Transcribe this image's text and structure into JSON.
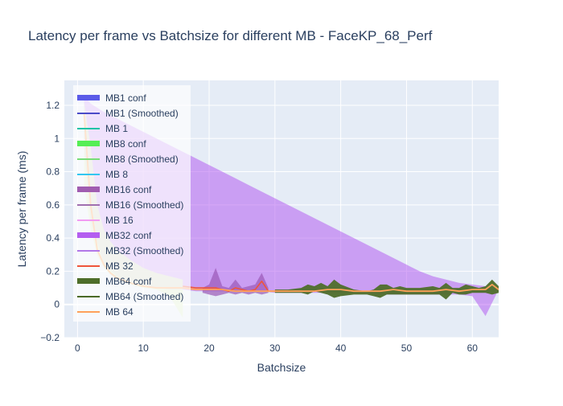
{
  "chart_data": {
    "type": "line",
    "title": "Latency per frame vs Batchsize for different MB - FaceKP_68_Perf",
    "xlabel": "Batchsize",
    "ylabel": "Latency per frame (ms)",
    "xlim": [
      -2,
      64
    ],
    "ylim": [
      -0.2,
      1.35
    ],
    "xticks": [
      0,
      10,
      20,
      30,
      40,
      50,
      60
    ],
    "yticks": [
      -0.2,
      0,
      0.2,
      0.4,
      0.6,
      0.8,
      1,
      1.2
    ],
    "ytick_labels": [
      "−0.2",
      "0",
      "0.2",
      "0.4",
      "0.6",
      "0.8",
      "1",
      "1.2"
    ],
    "grid": true,
    "legend_position": "top-left",
    "colors": {
      "plot_bg": "#e5ecf6",
      "grid": "#ffffff",
      "text": "#2a3f5f"
    },
    "legend": [
      {
        "label": "MB1 conf",
        "kind": "band",
        "color": "#5b5be8"
      },
      {
        "label": "MB1 (Smoothed)",
        "kind": "line",
        "color": "#4b4bc8"
      },
      {
        "label": "MB 1",
        "kind": "line",
        "color": "#19c3a6"
      },
      {
        "label": "MB8 conf",
        "kind": "band",
        "color": "#55ee55"
      },
      {
        "label": "MB8 (Smoothed)",
        "kind": "line",
        "color": "#77dd77"
      },
      {
        "label": "MB 8",
        "kind": "line",
        "color": "#33c6f0"
      },
      {
        "label": "MB16 conf",
        "kind": "band",
        "color": "#a05db0"
      },
      {
        "label": "MB16 (Smoothed)",
        "kind": "line",
        "color": "#a070b0"
      },
      {
        "label": "MB 16",
        "kind": "line",
        "color": "#f29cf2"
      },
      {
        "label": "MB32 conf",
        "kind": "band",
        "color": "#b45ef0"
      },
      {
        "label": "MB32 (Smoothed)",
        "kind": "line",
        "color": "#b278e8"
      },
      {
        "label": "MB 32",
        "kind": "line",
        "color": "#ef553b"
      },
      {
        "label": "MB64 conf",
        "kind": "band",
        "color": "#4e6e2a"
      },
      {
        "label": "MB64 (Smoothed)",
        "kind": "line",
        "color": "#4a6a26"
      },
      {
        "label": "MB 64",
        "kind": "line",
        "color": "#ffa15a"
      }
    ],
    "series": [
      {
        "name": "MB32 conf",
        "kind": "band",
        "color": "#b45ef0",
        "opacity": 0.55,
        "x": [
          1,
          2,
          4,
          6,
          8,
          10,
          12,
          14,
          16,
          18,
          20,
          22,
          24,
          26,
          28,
          30,
          32,
          34,
          36,
          38,
          40,
          42,
          44,
          46,
          48,
          50,
          52,
          54,
          56,
          58,
          60,
          62,
          64
        ],
        "upper": [
          1.26,
          1.21,
          1.16,
          1.12,
          1.08,
          1.04,
          1.0,
          0.96,
          0.92,
          0.88,
          0.84,
          0.8,
          0.76,
          0.72,
          0.68,
          0.64,
          0.6,
          0.56,
          0.52,
          0.48,
          0.44,
          0.4,
          0.36,
          0.32,
          0.28,
          0.24,
          0.2,
          0.17,
          0.15,
          0.13,
          0.12,
          0.11,
          0.09
        ],
        "lower": [
          0.95,
          0.5,
          0.25,
          0.17,
          0.13,
          0.11,
          0.1,
          0.09,
          0.09,
          0.08,
          0.08,
          0.08,
          0.08,
          0.08,
          0.08,
          0.07,
          0.07,
          0.07,
          0.07,
          0.07,
          0.07,
          0.07,
          0.07,
          0.06,
          0.06,
          0.06,
          0.06,
          0.06,
          0.06,
          0.06,
          0.05,
          -0.07,
          0.09
        ]
      },
      {
        "name": "MB8 conf",
        "kind": "band",
        "color": "#d6e8b8",
        "opacity": 0.75,
        "x": [
          1,
          2,
          3,
          4,
          5,
          6,
          8,
          10,
          12,
          14,
          16
        ],
        "upper": [
          1.22,
          0.95,
          0.6,
          0.45,
          0.38,
          0.33,
          0.27,
          0.22,
          0.19,
          0.17,
          0.15
        ],
        "lower": [
          0.72,
          0.45,
          0.3,
          0.22,
          0.18,
          0.15,
          0.12,
          0.1,
          0.09,
          0.05,
          -0.08
        ]
      },
      {
        "name": "MB16 conf",
        "kind": "band",
        "color": "#9b59b6",
        "opacity": 0.7,
        "x": [
          19,
          20,
          21,
          22,
          23,
          24,
          25,
          26,
          27,
          28,
          29
        ],
        "upper": [
          0.1,
          0.12,
          0.22,
          0.11,
          0.1,
          0.15,
          0.1,
          0.11,
          0.12,
          0.19,
          0.1
        ],
        "lower": [
          0.07,
          0.06,
          0.05,
          0.06,
          0.07,
          0.06,
          0.07,
          0.06,
          0.07,
          0.06,
          0.07
        ]
      },
      {
        "name": "MB64 conf",
        "kind": "band",
        "color": "#4e6e2a",
        "opacity": 0.95,
        "x": [
          30,
          32,
          34,
          35,
          36,
          37,
          38,
          39,
          40,
          42,
          44,
          45,
          46,
          47,
          48,
          49,
          50,
          52,
          54,
          55,
          56,
          57,
          58,
          59,
          60,
          61,
          62,
          63,
          64
        ],
        "upper": [
          0.09,
          0.09,
          0.1,
          0.12,
          0.11,
          0.13,
          0.11,
          0.15,
          0.12,
          0.09,
          0.08,
          0.09,
          0.12,
          0.12,
          0.1,
          0.11,
          0.1,
          0.1,
          0.11,
          0.1,
          0.13,
          0.1,
          0.1,
          0.12,
          0.11,
          0.1,
          0.11,
          0.15,
          0.11
        ],
        "lower": [
          0.07,
          0.07,
          0.07,
          0.06,
          0.08,
          0.07,
          0.06,
          0.04,
          0.05,
          0.06,
          0.06,
          0.05,
          0.04,
          0.06,
          0.06,
          0.06,
          0.06,
          0.06,
          0.06,
          0.06,
          0.03,
          0.07,
          0.06,
          0.06,
          0.07,
          0.07,
          0.07,
          0.06,
          0.07
        ]
      },
      {
        "name": "MB 32",
        "kind": "line",
        "color": "#ef553b",
        "width": 1.6,
        "x": [
          16,
          18,
          20,
          21,
          22,
          23,
          24,
          25,
          26,
          27,
          28,
          29,
          30,
          32
        ],
        "y": [
          0.11,
          0.1,
          0.1,
          0.1,
          0.09,
          0.08,
          0.1,
          0.09,
          0.08,
          0.09,
          0.14,
          0.08,
          0.08,
          0.08
        ]
      },
      {
        "name": "MB 64",
        "kind": "line",
        "color": "#ffa15a",
        "width": 1.8,
        "x": [
          1,
          2,
          3,
          4,
          5,
          6,
          8,
          10,
          12,
          14,
          16,
          18,
          20,
          22,
          24,
          26,
          28,
          30,
          32,
          34,
          36,
          38,
          40,
          42,
          44,
          46,
          48,
          50,
          52,
          54,
          56,
          58,
          60,
          62,
          63,
          64
        ],
        "y": [
          1.15,
          0.6,
          0.33,
          0.24,
          0.19,
          0.16,
          0.13,
          0.11,
          0.1,
          0.1,
          0.1,
          0.09,
          0.09,
          0.09,
          0.08,
          0.08,
          0.08,
          0.08,
          0.08,
          0.08,
          0.08,
          0.09,
          0.09,
          0.08,
          0.08,
          0.08,
          0.09,
          0.08,
          0.08,
          0.08,
          0.09,
          0.08,
          0.09,
          0.09,
          0.12,
          0.09
        ]
      }
    ]
  }
}
